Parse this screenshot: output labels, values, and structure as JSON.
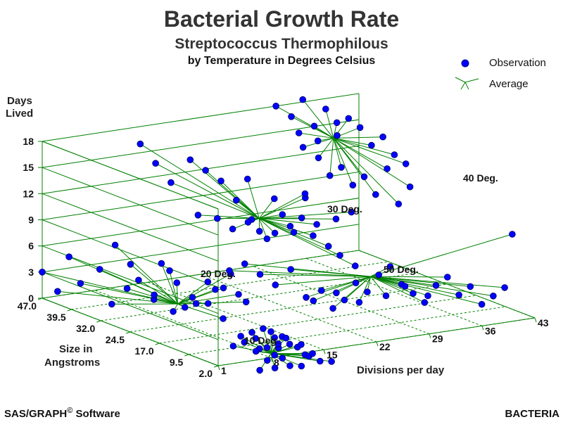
{
  "chart_data": {
    "type": "scatter",
    "title": "Bacterial Growth Rate",
    "subtitle": "Streptococcus Thermophilous",
    "subtitle2": "by Temperature in Degrees Celsius",
    "xlabel": "Divisions per day",
    "ylabel": "Size in Angstroms",
    "zlabel_line1": "Days",
    "zlabel_line2": "Lived",
    "x_ticks": [
      "1",
      "8",
      "15",
      "22",
      "29",
      "36",
      "43"
    ],
    "y_ticks": [
      "2.0",
      "9.5",
      "17.0",
      "24.5",
      "32.0",
      "39.5",
      "47.0"
    ],
    "z_ticks": [
      "0",
      "3",
      "6",
      "9",
      "12",
      "15",
      "18"
    ],
    "xlim": [
      1,
      43
    ],
    "ylim": [
      2,
      47
    ],
    "zlim": [
      0,
      18
    ],
    "legend": [
      {
        "name": "Observation",
        "color": "#0000ff",
        "marker": "dot"
      },
      {
        "name": "Average",
        "color": "#008000",
        "marker": "star"
      }
    ],
    "legend_placement": "top-right",
    "groups": [
      {
        "label": "10 Deg.",
        "center": {
          "x": 8,
          "y": 2,
          "z": 0.5
        },
        "points": [
          [
            3,
            2,
            2
          ],
          [
            4,
            2,
            3
          ],
          [
            5,
            3,
            2
          ],
          [
            6,
            3,
            3
          ],
          [
            7,
            4,
            2
          ],
          [
            7,
            3,
            1
          ],
          [
            8,
            4,
            3
          ],
          [
            8,
            2,
            3
          ],
          [
            9,
            2,
            1
          ],
          [
            9,
            3,
            0
          ],
          [
            10,
            3,
            2
          ],
          [
            10,
            2,
            2
          ],
          [
            11,
            3,
            1
          ],
          [
            11,
            1,
            1
          ],
          [
            12,
            1,
            0
          ],
          [
            6,
            1,
            -1
          ],
          [
            7,
            1,
            0
          ],
          [
            8,
            1,
            -1
          ],
          [
            9,
            1,
            0
          ],
          [
            10,
            1,
            -1
          ],
          [
            11,
            0,
            -1
          ],
          [
            12,
            0,
            0
          ],
          [
            13,
            1,
            0
          ],
          [
            14,
            1,
            -1
          ],
          [
            6,
            2,
            1
          ],
          [
            8,
            3,
            1
          ],
          [
            9,
            3,
            2
          ],
          [
            10,
            4,
            1
          ],
          [
            12,
            2,
            1
          ],
          [
            15,
            0,
            -1
          ]
        ]
      },
      {
        "label": "20 Deg.",
        "center": {
          "x": 6,
          "y": 22,
          "z": 3
        },
        "points": [
          [
            1,
            47,
            3
          ],
          [
            2,
            45,
            1
          ],
          [
            3,
            44,
            5
          ],
          [
            4,
            43,
            2
          ],
          [
            5,
            40,
            4
          ],
          [
            6,
            38,
            7
          ],
          [
            7,
            36,
            5
          ],
          [
            8,
            30,
            6
          ],
          [
            9,
            28,
            4
          ],
          [
            10,
            25,
            2
          ],
          [
            11,
            22,
            4
          ],
          [
            12,
            20,
            6
          ],
          [
            13,
            18,
            3
          ],
          [
            4,
            35,
            1
          ],
          [
            5,
            33,
            3
          ],
          [
            6,
            32,
            4
          ],
          [
            7,
            30,
            2
          ],
          [
            8,
            27,
            1
          ],
          [
            9,
            24,
            3
          ],
          [
            10,
            22,
            5
          ],
          [
            11,
            20,
            1
          ],
          [
            12,
            18,
            4
          ],
          [
            6,
            28,
            3
          ],
          [
            7,
            26,
            6
          ],
          [
            8,
            24,
            2
          ],
          [
            9,
            20,
            3
          ],
          [
            10,
            18,
            5
          ]
        ]
      },
      {
        "label": "30 Deg.",
        "center": {
          "x": 22,
          "y": 32,
          "z": 9
        },
        "points": [
          [
            14,
            47,
            16
          ],
          [
            15,
            45,
            14
          ],
          [
            16,
            43,
            12
          ],
          [
            17,
            40,
            15
          ],
          [
            18,
            38,
            14
          ],
          [
            19,
            36,
            13
          ],
          [
            20,
            34,
            11
          ],
          [
            21,
            32,
            9
          ],
          [
            22,
            30,
            7
          ],
          [
            23,
            28,
            10
          ],
          [
            24,
            27,
            8
          ],
          [
            25,
            26,
            12
          ],
          [
            26,
            25,
            9
          ],
          [
            27,
            22,
            10
          ],
          [
            28,
            20,
            11
          ],
          [
            17,
            38,
            9
          ],
          [
            18,
            35,
            9
          ],
          [
            19,
            33,
            8
          ],
          [
            20,
            31,
            9
          ],
          [
            21,
            30,
            8
          ],
          [
            22,
            28,
            8
          ],
          [
            23,
            26,
            9
          ],
          [
            24,
            25,
            10
          ],
          [
            25,
            24,
            8
          ],
          [
            26,
            22,
            7
          ],
          [
            27,
            21,
            6
          ],
          [
            28,
            19,
            5
          ],
          [
            22,
            35,
            13
          ],
          [
            24,
            32,
            11
          ],
          [
            26,
            28,
            12
          ]
        ]
      },
      {
        "label": "50 Deg.",
        "center": {
          "x": 29,
          "y": 17,
          "z": 4
        },
        "points": [
          [
            17,
            30,
            4
          ],
          [
            18,
            28,
            5
          ],
          [
            19,
            26,
            4
          ],
          [
            20,
            24,
            3
          ],
          [
            21,
            22,
            5
          ],
          [
            22,
            20,
            2
          ],
          [
            23,
            18,
            3
          ],
          [
            24,
            17,
            1
          ],
          [
            25,
            16,
            2
          ],
          [
            26,
            15,
            4
          ],
          [
            27,
            14,
            3
          ],
          [
            28,
            13,
            5
          ],
          [
            29,
            12,
            6
          ],
          [
            30,
            11,
            4
          ],
          [
            31,
            10,
            3
          ],
          [
            32,
            9,
            2
          ],
          [
            33,
            8,
            4
          ],
          [
            34,
            7,
            5
          ],
          [
            35,
            6,
            3
          ],
          [
            36,
            5,
            4
          ],
          [
            37,
            4,
            2
          ],
          [
            38,
            3,
            3
          ],
          [
            39,
            2,
            4
          ],
          [
            40,
            2,
            10
          ],
          [
            24,
            22,
            1
          ],
          [
            26,
            20,
            2
          ],
          [
            28,
            18,
            1
          ],
          [
            30,
            15,
            2
          ],
          [
            32,
            14,
            3
          ],
          [
            34,
            12,
            2
          ]
        ]
      },
      {
        "label": "40 Deg.",
        "center": {
          "x": 36,
          "y": 40,
          "z": 15
        },
        "points": [
          [
            32,
            47,
            18
          ],
          [
            33,
            45,
            17
          ],
          [
            34,
            44,
            19
          ],
          [
            35,
            43,
            16
          ],
          [
            36,
            42,
            18
          ],
          [
            37,
            41,
            15
          ],
          [
            38,
            40,
            17
          ],
          [
            39,
            39,
            16
          ],
          [
            40,
            38,
            14
          ],
          [
            41,
            37,
            15
          ],
          [
            42,
            36,
            13
          ],
          [
            43,
            35,
            12
          ],
          [
            33,
            42,
            14
          ],
          [
            34,
            40,
            13
          ],
          [
            35,
            39,
            11
          ],
          [
            36,
            38,
            12
          ],
          [
            37,
            37,
            10
          ],
          [
            38,
            36,
            11
          ],
          [
            39,
            35,
            9
          ],
          [
            40,
            34,
            12
          ],
          [
            41,
            33,
            8
          ],
          [
            42,
            32,
            10
          ],
          [
            34,
            45,
            15
          ],
          [
            36,
            44,
            14
          ],
          [
            38,
            43,
            16
          ]
        ]
      }
    ]
  },
  "footer_left": "SAS/GRAPH",
  "footer_sup": "©",
  "footer_left_tail": " Software",
  "footer_right": "BACTERIA"
}
